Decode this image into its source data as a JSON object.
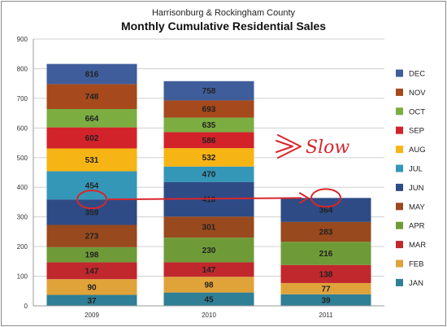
{
  "chart_data": {
    "type": "bar",
    "stacked": true,
    "subtitle": "Harrisonburg & Rockingham County",
    "title": "Monthly Cumulative Residential Sales",
    "xlabel": "",
    "ylabel": "",
    "ylim": [
      0,
      900
    ],
    "yticks": [
      0,
      100,
      200,
      300,
      400,
      500,
      600,
      700,
      800,
      900
    ],
    "grid": true,
    "legend_position": "right",
    "categories": [
      "2009",
      "2010",
      "2011"
    ],
    "series": [
      {
        "name": "JAN",
        "color": "#2f7f96",
        "cumulative": [
          37,
          45,
          39
        ]
      },
      {
        "name": "FEB",
        "color": "#e0a33a",
        "cumulative": [
          90,
          98,
          77
        ]
      },
      {
        "name": "MAR",
        "color": "#c0282d",
        "cumulative": [
          147,
          147,
          138
        ]
      },
      {
        "name": "APR",
        "color": "#6e9b37",
        "cumulative": [
          198,
          230,
          216
        ]
      },
      {
        "name": "MAY",
        "color": "#98491e",
        "cumulative": [
          273,
          301,
          283
        ]
      },
      {
        "name": "JUN",
        "color": "#2e4b86",
        "cumulative": [
          359,
          418,
          364
        ]
      },
      {
        "name": "JUL",
        "color": "#3497b8",
        "cumulative": [
          454,
          470,
          null
        ]
      },
      {
        "name": "AUG",
        "color": "#f7b415",
        "cumulative": [
          531,
          532,
          null
        ]
      },
      {
        "name": "SEP",
        "color": "#d2232a",
        "cumulative": [
          602,
          586,
          null
        ]
      },
      {
        "name": "OCT",
        "color": "#7cad41",
        "cumulative": [
          664,
          635,
          null
        ]
      },
      {
        "name": "NOV",
        "color": "#a6491c",
        "cumulative": [
          748,
          693,
          null
        ]
      },
      {
        "name": "DEC",
        "color": "#3f5d9b",
        "cumulative": [
          816,
          758,
          null
        ]
      }
    ],
    "annotations": [
      {
        "text": "Slow",
        "color": "#d8262c"
      },
      {
        "type": "arrow",
        "from": {
          "category": "2009",
          "value": 359
        },
        "to": {
          "category": "2011",
          "value": 364
        },
        "color": "#d8262c"
      }
    ]
  }
}
